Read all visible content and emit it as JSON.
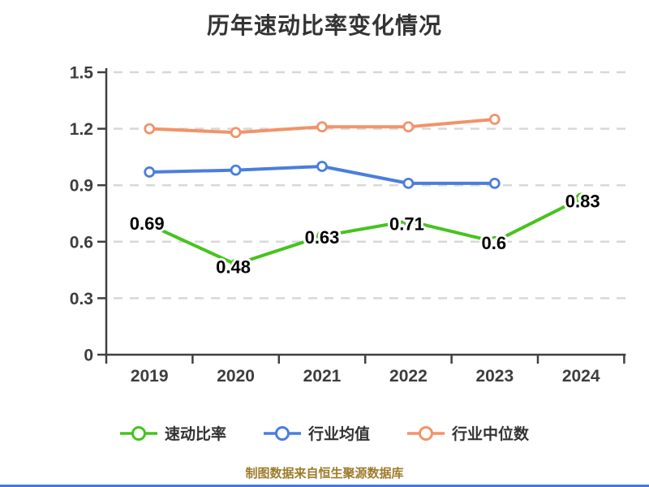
{
  "title": "历年速动比率变化情况",
  "caption": "制图数据来自恒生聚源数据库",
  "colors": {
    "title": "#333333",
    "axis": "#404040",
    "grid": "#d8d8d8",
    "tick_label": "#3d3d3d",
    "data_label": "#000000",
    "legend_text": "#333333",
    "caption": "#9d7c2c",
    "bottom_bar": "#4579d8",
    "marker_fill": "#ffffff"
  },
  "chart_data": {
    "type": "line",
    "title": "历年速动比率变化情况",
    "xlabel": "",
    "ylabel": "",
    "x": [
      "2019",
      "2020",
      "2021",
      "2022",
      "2023",
      "2024"
    ],
    "ylim": [
      0,
      1.5
    ],
    "yticks": [
      0,
      0.3,
      0.6,
      0.9,
      1.2,
      1.5
    ],
    "grid": "dashed",
    "legend_position": "bottom",
    "series": [
      {
        "name": "速动比率",
        "color": "#47c31e",
        "values": [
          0.69,
          0.48,
          0.63,
          0.71,
          0.6,
          0.83
        ],
        "labels": [
          "0.69",
          "0.48",
          "0.63",
          "0.71",
          "0.6",
          "0.83"
        ],
        "show_labels": true
      },
      {
        "name": "行业均值",
        "color": "#4a7edd",
        "values": [
          0.97,
          0.98,
          1.0,
          0.91,
          0.91,
          null
        ],
        "show_labels": false
      },
      {
        "name": "行业中位数",
        "color": "#f2936a",
        "values": [
          1.2,
          1.18,
          1.21,
          1.21,
          1.25,
          null
        ],
        "show_labels": false
      }
    ]
  }
}
